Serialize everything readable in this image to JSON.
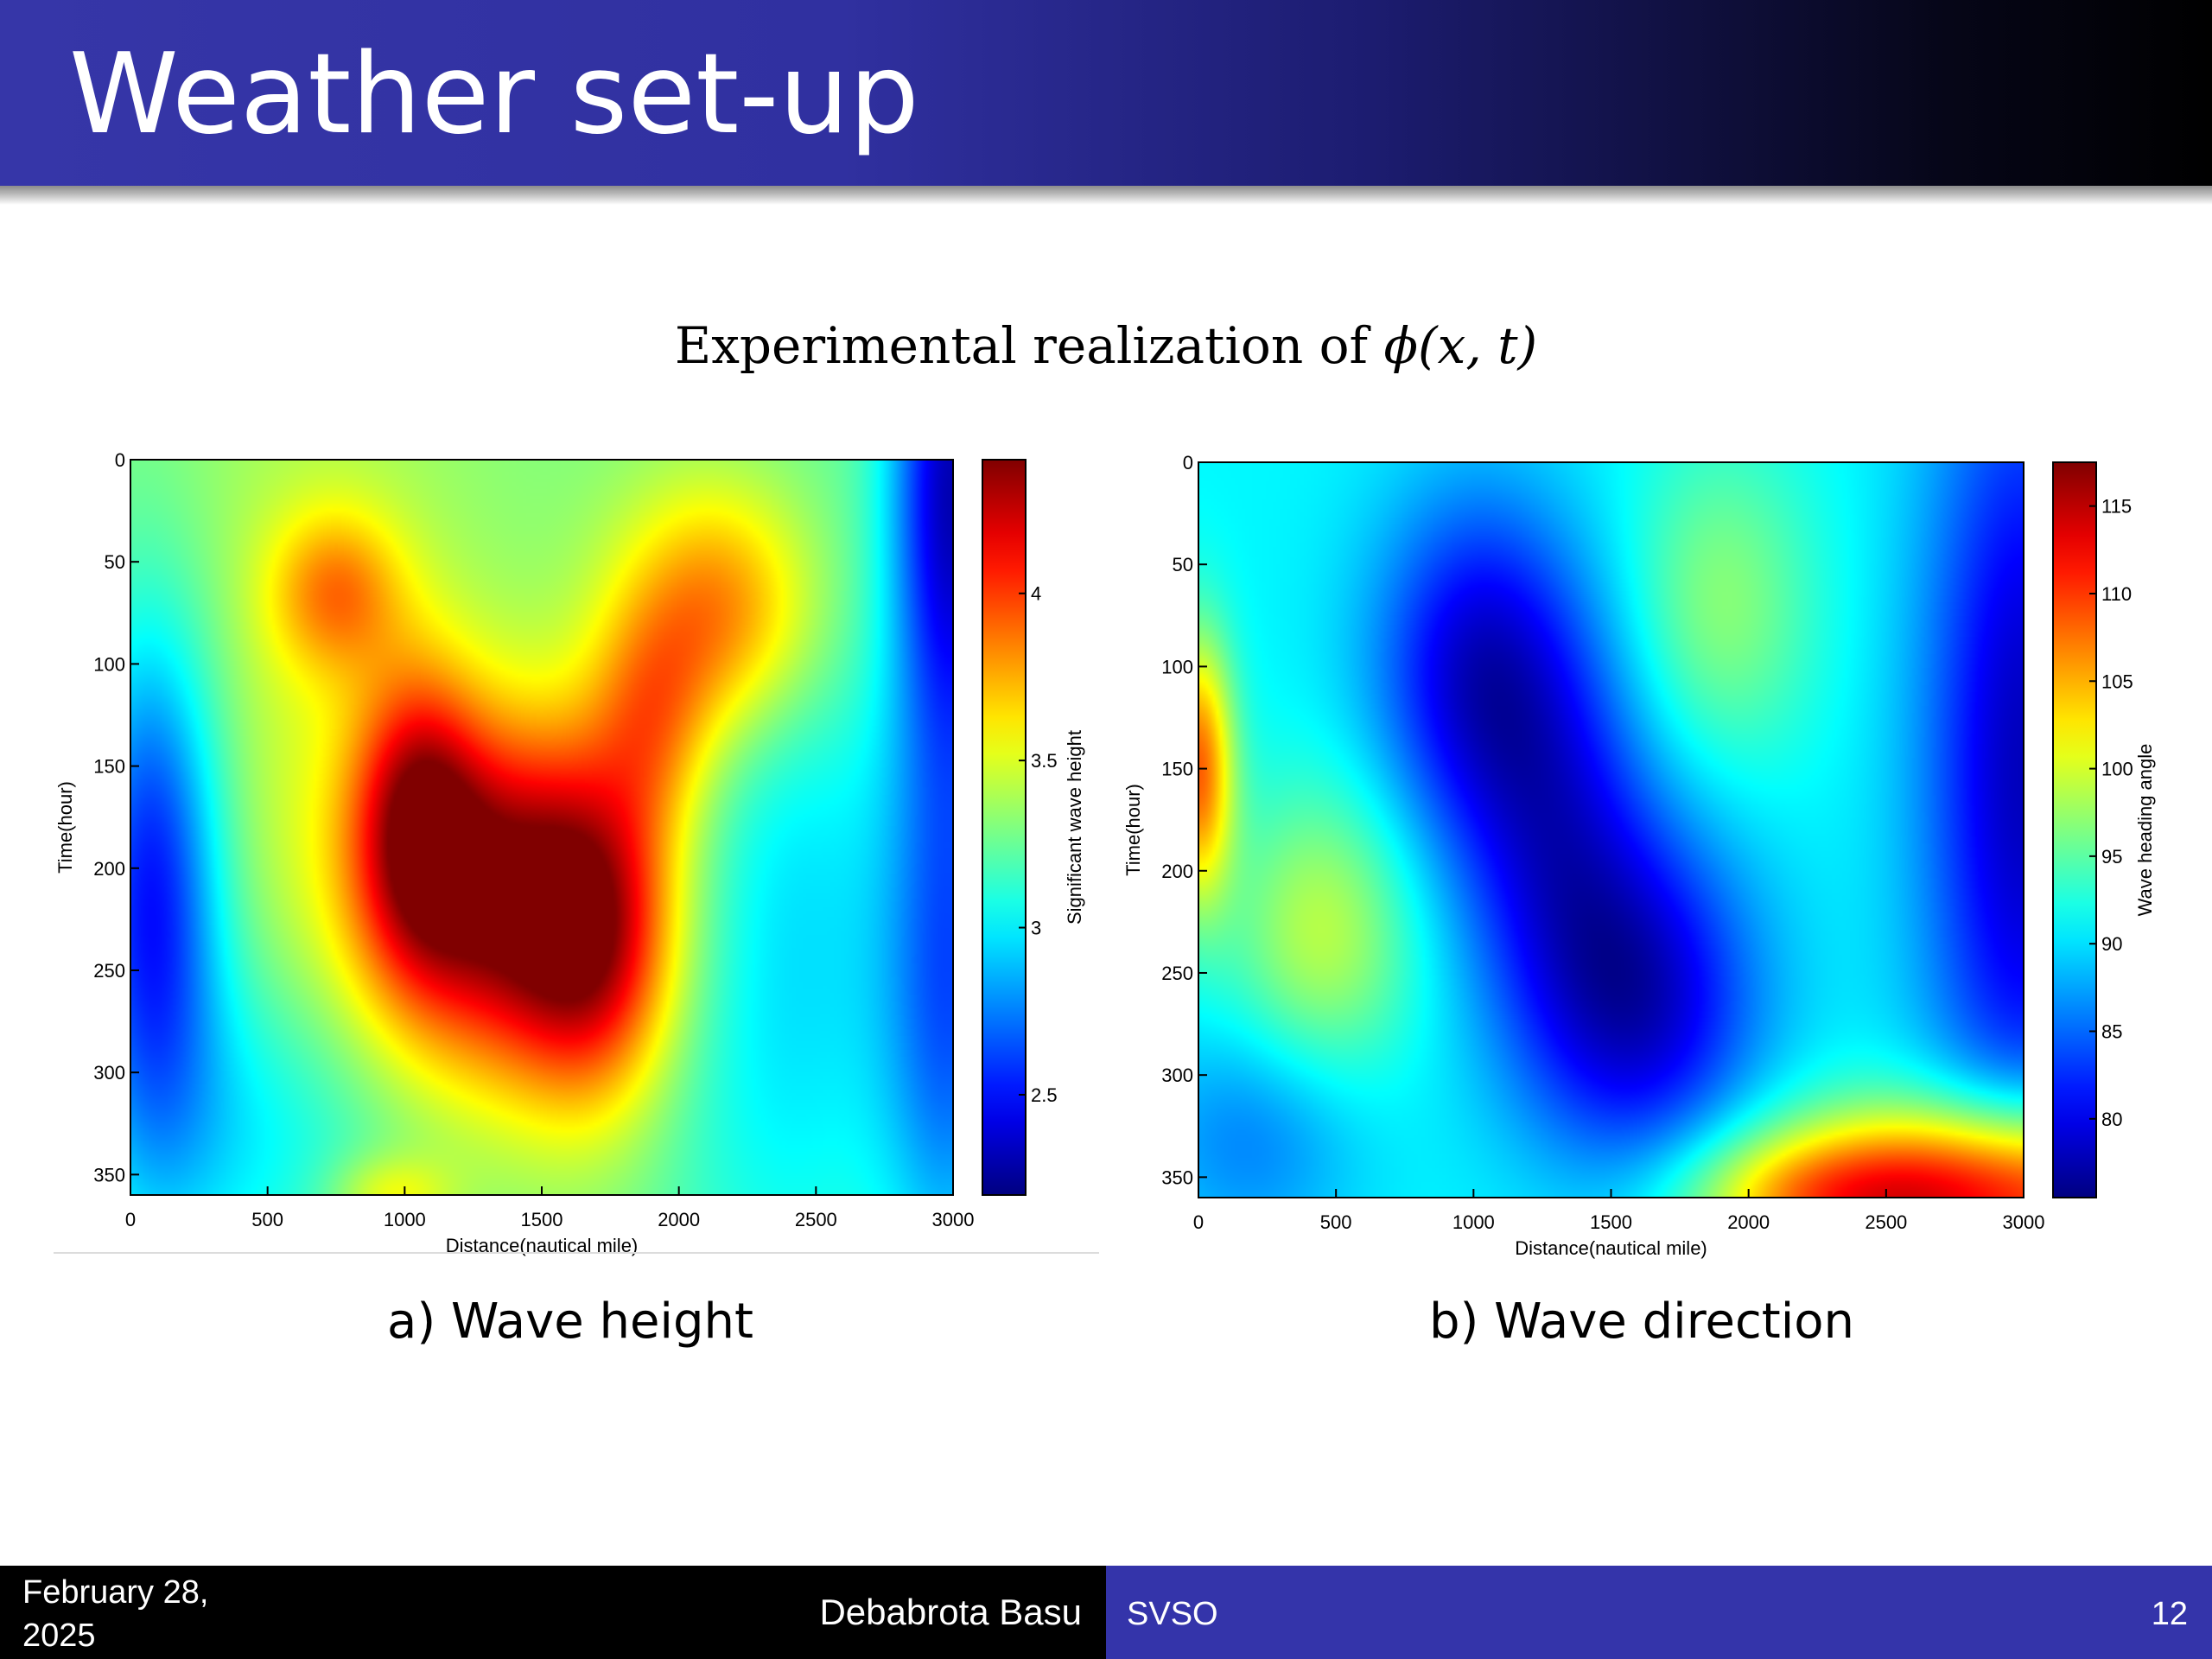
{
  "slide": {
    "title": "Weather set-up",
    "subtitle_text": "Experimental realization of ",
    "subtitle_math": "ϕ(x, t)",
    "footer": {
      "date": "February 28, 2025",
      "author": "Debabrota Basu",
      "event": "SVSO",
      "page": "12"
    }
  },
  "colors": {
    "header_start": "#3636a8",
    "header_end": "#000000",
    "footer_left": "#000000",
    "footer_right": "#3434aa",
    "colormap": "jet"
  },
  "chart_data": [
    {
      "type": "heatmap",
      "caption": "a) Wave height",
      "xlabel": "Distance(nautical mile)",
      "ylabel": "Time(hour)",
      "colorbar_label": "Significant wave height",
      "xlim": [
        0,
        3000
      ],
      "ylim": [
        0,
        360
      ],
      "y_reversed": true,
      "xticks": [
        0,
        500,
        1000,
        1500,
        2000,
        2500,
        3000
      ],
      "yticks": [
        0,
        50,
        100,
        150,
        200,
        250,
        300,
        350
      ],
      "colorbar_range": [
        2.2,
        4.4
      ],
      "colorbar_ticks": [
        2.5,
        3,
        3.5,
        4
      ],
      "background": 3.3,
      "features": [
        {
          "x": 1380,
          "t": 215,
          "sx": 360,
          "st": 60,
          "value": 4.4
        },
        {
          "x": 1050,
          "t": 175,
          "sx": 160,
          "st": 50,
          "value": 4.0
        },
        {
          "x": 1700,
          "t": 240,
          "sx": 200,
          "st": 55,
          "value": 3.9
        },
        {
          "x": 2150,
          "t": 75,
          "sx": 260,
          "st": 45,
          "value": 3.95
        },
        {
          "x": 1900,
          "t": 130,
          "sx": 160,
          "st": 40,
          "value": 3.7
        },
        {
          "x": 750,
          "t": 65,
          "sx": 170,
          "st": 28,
          "value": 3.75
        },
        {
          "x": 700,
          "t": 110,
          "sx": 400,
          "st": 120,
          "value": 3.45
        },
        {
          "x": 80,
          "t": 210,
          "sx": 180,
          "st": 90,
          "value": 2.5
        },
        {
          "x": 3000,
          "t": 10,
          "sx": 160,
          "st": 100,
          "value": 2.35
        },
        {
          "x": 3000,
          "t": 270,
          "sx": 180,
          "st": 100,
          "value": 2.75
        },
        {
          "x": 2400,
          "t": 240,
          "sx": 360,
          "st": 140,
          "value": 2.95
        },
        {
          "x": 400,
          "t": 330,
          "sx": 400,
          "st": 60,
          "value": 3.0
        },
        {
          "x": 950,
          "t": 360,
          "sx": 160,
          "st": 14,
          "value": 3.6
        }
      ]
    },
    {
      "type": "heatmap",
      "caption": "b) Wave direction",
      "xlabel": "Distance(nautical mile)",
      "ylabel": "Time(hour)",
      "colorbar_label": "Wave heading angle",
      "xlim": [
        0,
        3000
      ],
      "ylim": [
        0,
        360
      ],
      "y_reversed": true,
      "xticks": [
        0,
        500,
        1000,
        1500,
        2000,
        2500,
        3000
      ],
      "yticks": [
        0,
        50,
        100,
        150,
        200,
        250,
        300,
        350
      ],
      "colorbar_range": [
        75.5,
        117.5
      ],
      "colorbar_ticks": [
        80,
        85,
        90,
        95,
        100,
        105,
        110,
        115
      ],
      "background": 91,
      "features": [
        {
          "x": 0,
          "t": 150,
          "sx": 90,
          "st": 45,
          "value": 108
        },
        {
          "x": 450,
          "t": 230,
          "sx": 240,
          "st": 50,
          "value": 99
        },
        {
          "x": 1900,
          "t": 70,
          "sx": 240,
          "st": 55,
          "value": 97
        },
        {
          "x": 1000,
          "t": 100,
          "sx": 260,
          "st": 60,
          "value": 80
        },
        {
          "x": 1300,
          "t": 180,
          "sx": 260,
          "st": 75,
          "value": 82
        },
        {
          "x": 1620,
          "t": 265,
          "sx": 300,
          "st": 60,
          "value": 79
        },
        {
          "x": 3000,
          "t": 150,
          "sx": 260,
          "st": 150,
          "value": 78
        },
        {
          "x": 2900,
          "t": 360,
          "sx": 550,
          "st": 32,
          "value": 115
        },
        {
          "x": 2200,
          "t": 360,
          "sx": 320,
          "st": 22,
          "value": 99
        },
        {
          "x": 200,
          "t": 330,
          "sx": 280,
          "st": 40,
          "value": 86
        }
      ]
    }
  ]
}
